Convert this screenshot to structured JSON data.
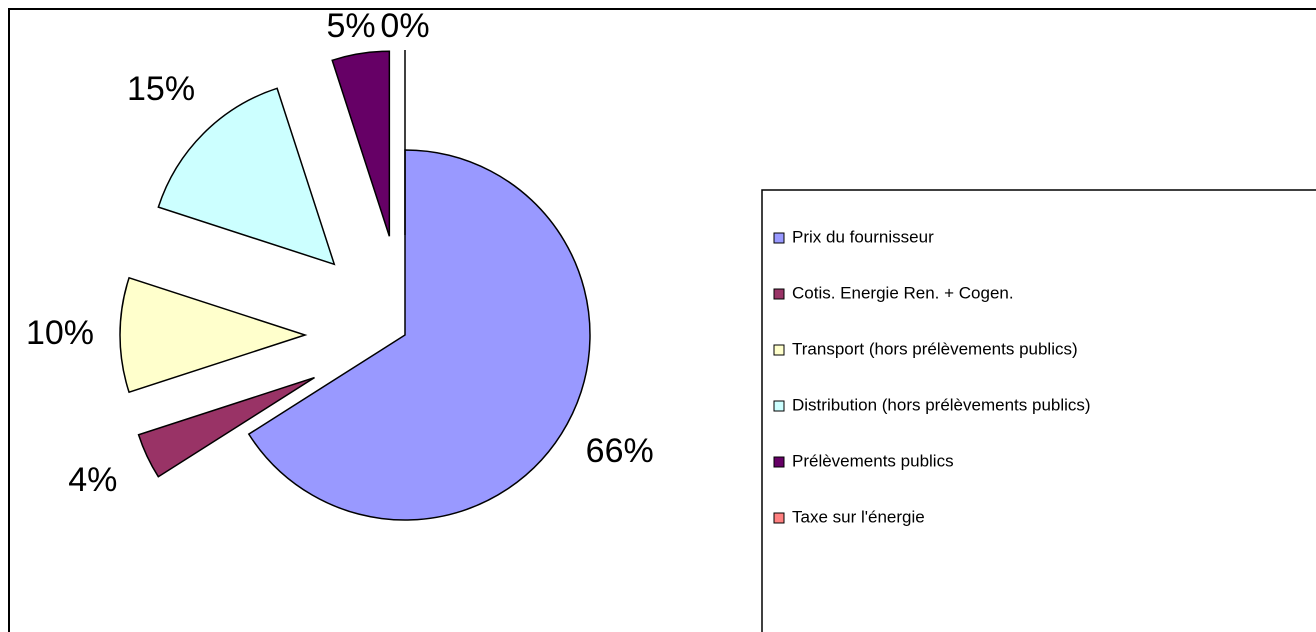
{
  "chart_data": {
    "type": "pie",
    "categories": [
      "Prix du fournisseur",
      "Cotis. Energie Ren. + Cogen.",
      "Transport (hors prélèvements publics)",
      "Distribution (hors prélèvements publics)",
      "Prélèvements publics",
      "Taxe sur l'énergie"
    ],
    "values": [
      66,
      4,
      10,
      15,
      5,
      0
    ],
    "value_labels": [
      "66%",
      "4%",
      "10%",
      "15%",
      "5%",
      "0%"
    ],
    "colors": [
      "#9999ff",
      "#993366",
      "#ffffcc",
      "#ccffff",
      "#660066",
      "#ff8080"
    ],
    "legend": "right"
  }
}
